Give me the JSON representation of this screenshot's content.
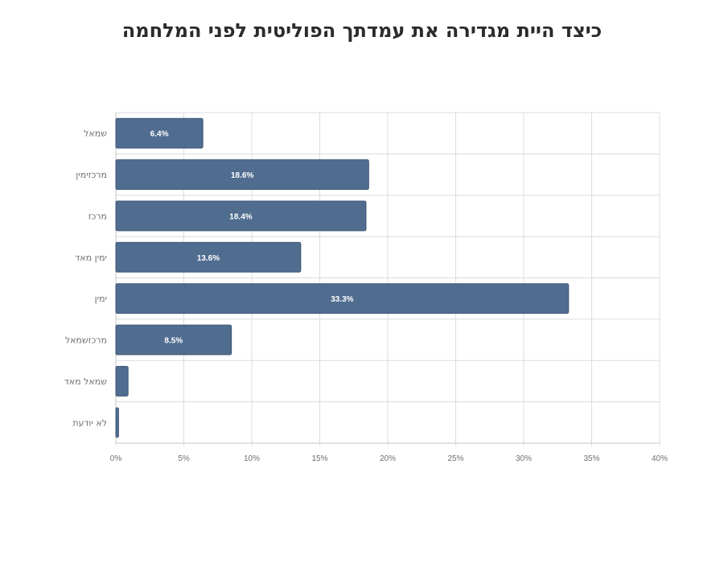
{
  "chart_data": {
    "type": "bar",
    "orientation": "horizontal",
    "title": "כיצד היית מגדירה את עמדתך הפוליטית לפני המלחמה",
    "xlabel": "",
    "ylabel": "",
    "xlim": [
      0,
      40
    ],
    "x_ticks": [
      "0%",
      "5%",
      "10%",
      "15%",
      "20%",
      "25%",
      "30%",
      "35%",
      "40%"
    ],
    "categories": [
      "שמאל",
      "מרכזימין",
      "מרכז",
      "ימין מאד",
      "ימין",
      "מרכזשמאל",
      "שמאל מאד",
      "לא יודעת"
    ],
    "values": [
      6.4,
      18.6,
      18.4,
      13.6,
      33.3,
      8.5,
      0.9,
      0.2
    ],
    "data_labels": [
      "6.4%",
      "18.6%",
      "18.4%",
      "13.6%",
      "33.3%",
      "8.5%",
      "",
      ""
    ],
    "bar_color": "#506d8f",
    "grid": true,
    "legend": "none"
  }
}
